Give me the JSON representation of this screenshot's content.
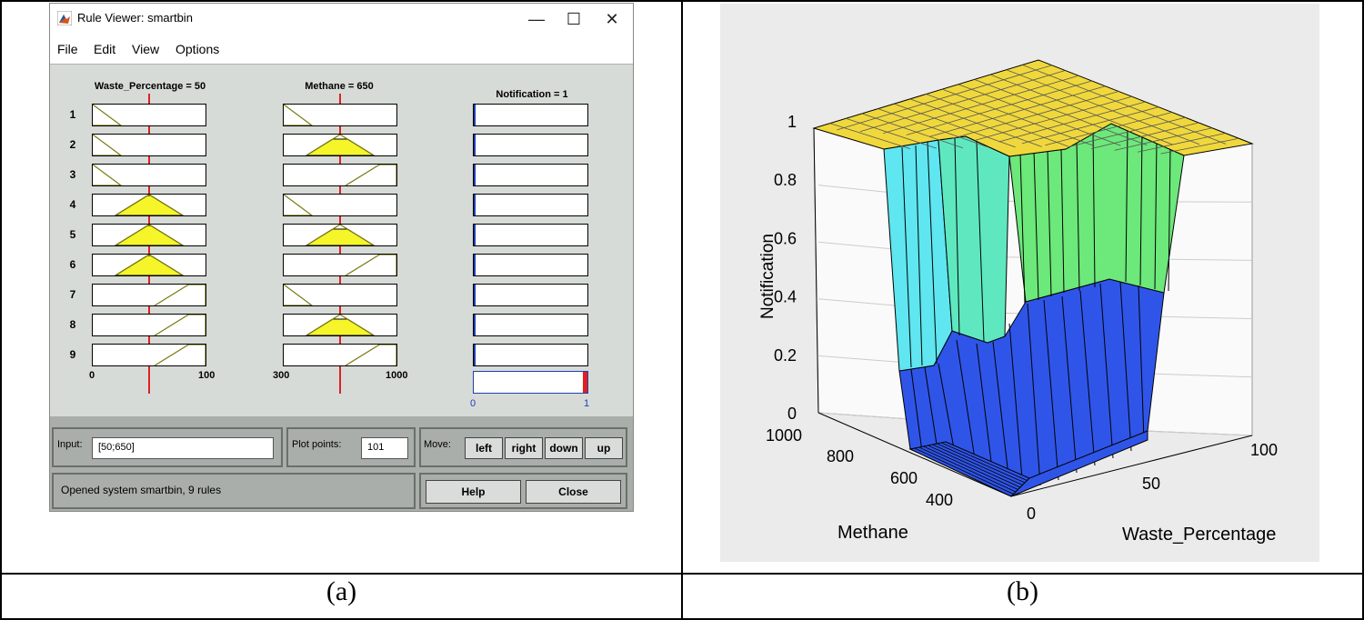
{
  "window": {
    "title": "Rule Viewer: smartbin",
    "menu": [
      "File",
      "Edit",
      "View",
      "Options"
    ],
    "minimize_glyph": "—",
    "maximize_glyph": "☐",
    "close_glyph": "✕"
  },
  "rule_viewer": {
    "inputs": [
      {
        "label": "Waste_Percentage = 50",
        "value": 50,
        "range": [
          0,
          100
        ],
        "axis_min": "0",
        "axis_max": "100"
      },
      {
        "label": "Methane = 650",
        "value": 650,
        "range": [
          300,
          1000
        ],
        "axis_min": "300",
        "axis_max": "1000"
      }
    ],
    "output": {
      "label": "Notification = 1",
      "axis_min": "0",
      "axis_max": "1",
      "aggregate_value": 1.0
    },
    "rules": [
      "1",
      "2",
      "3",
      "4",
      "5",
      "6",
      "7",
      "8",
      "9"
    ],
    "waste_mf": [
      "low",
      "low",
      "low",
      "mid",
      "mid",
      "mid",
      "high",
      "high",
      "high"
    ],
    "methane_mf": [
      "low",
      "mid",
      "high",
      "low",
      "mid",
      "high",
      "low",
      "mid",
      "high"
    ]
  },
  "controls": {
    "input_label": "Input:",
    "input_value": "[50;650]",
    "plot_points_label": "Plot points:",
    "plot_points_value": "101",
    "move_label": "Move:",
    "move_buttons": [
      "left",
      "right",
      "down",
      "up"
    ],
    "status": "Opened system smartbin, 9 rules",
    "help_label": "Help",
    "close_label": "Close"
  },
  "captions": {
    "a": "(a)",
    "b": "(b)"
  },
  "colors": {
    "yellow_fill": "#f5f52a",
    "mf_line": "#7a7a10",
    "red_line": "#e02020",
    "output_edge": "#1f3fb0",
    "surface_top": "#f0d83c",
    "surface_cyan": "#5fe6f0",
    "surface_teal": "#5fe8c0",
    "surface_green": "#6de87a",
    "surface_blue": "#2f55e8"
  },
  "chart_data": {
    "type": "surface",
    "zlabel": "Notification",
    "xlabel": "Methane",
    "ylabel": "Waste_Percentage",
    "z_ticks": [
      "0",
      "0.2",
      "0.4",
      "0.6",
      "0.8",
      "1"
    ],
    "methane_ticks": [
      "400",
      "600",
      "800",
      "1000"
    ],
    "waste_ticks": [
      "0",
      "50",
      "100"
    ],
    "zlim": [
      0,
      1
    ],
    "methane_range": [
      300,
      1000
    ],
    "waste_range": [
      0,
      100
    ]
  }
}
